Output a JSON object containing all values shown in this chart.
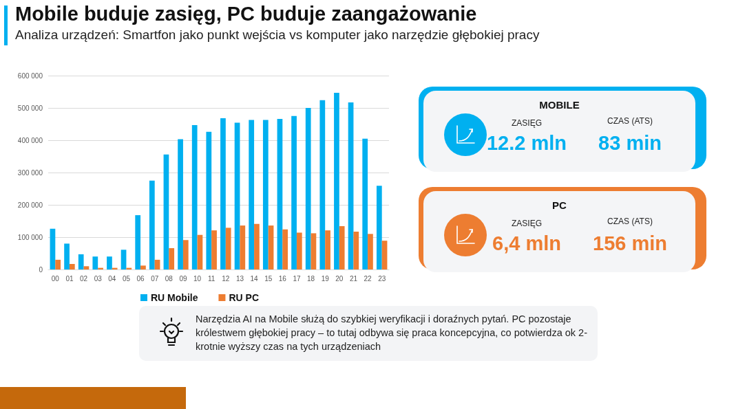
{
  "chart_data": {
    "type": "bar",
    "title": "Mobile buduje zasięg, PC buduje zaangażowanie",
    "subtitle": "Analiza urządzeń: Smartfon jako punkt wejścia vs komputer jako narzędzie głębokiej pracy",
    "categories": [
      "00",
      "01",
      "02",
      "03",
      "04",
      "05",
      "06",
      "07",
      "08",
      "09",
      "10",
      "11",
      "12",
      "13",
      "14",
      "15",
      "16",
      "17",
      "18",
      "19",
      "20",
      "21",
      "22",
      "23"
    ],
    "series": [
      {
        "name": "RU Mobile",
        "color": "#00b0f0",
        "values": [
          126000,
          80000,
          47000,
          40000,
          40000,
          61000,
          168000,
          275000,
          356000,
          403000,
          447000,
          426000,
          468000,
          454000,
          463000,
          463000,
          466000,
          475000,
          500000,
          524000,
          547000,
          517000,
          405000,
          259000
        ]
      },
      {
        "name": "RU PC",
        "color": "#ed7d31",
        "values": [
          30000,
          17000,
          10000,
          5000,
          5000,
          5000,
          12000,
          30000,
          66000,
          91000,
          107000,
          121000,
          129000,
          136000,
          141000,
          136000,
          124000,
          114000,
          112000,
          121000,
          134000,
          117000,
          110000,
          89000
        ]
      }
    ],
    "ylim": [
      0,
      600000
    ],
    "yticks": [
      {
        "value": 0,
        "label": "0"
      },
      {
        "value": 100000,
        "label": "100 000"
      },
      {
        "value": 200000,
        "label": "200 000"
      },
      {
        "value": 300000,
        "label": "300 000"
      },
      {
        "value": 400000,
        "label": "400 000"
      },
      {
        "value": 500000,
        "label": "500 000"
      },
      {
        "value": 600000,
        "label": "600 000"
      }
    ],
    "grid": "y",
    "legend": "bottom",
    "annotations": [
      "MOBILE",
      "ZASIĘG",
      "12.2 mln",
      "CZAS (ATS)",
      "83 min",
      "PC",
      "ZASIĘG",
      "6,4 mln",
      "CZAS (ATS)",
      "156 min",
      "Narzędzia AI na Mobile służą do szybkiej weryfikacji i doraźnych pytań. PC pozostaje królestwem głębokiej pracy – to tutaj odbywa się praca koncepcyjna, co potwierdza ok 2-krotnie wyższy czas na tych urządzeniach"
    ]
  }
}
